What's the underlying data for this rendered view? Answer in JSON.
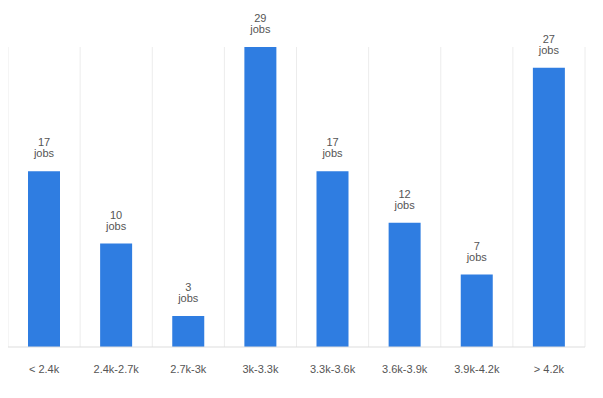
{
  "chart_data": {
    "type": "bar",
    "categories": [
      "< 2.4k",
      "2.4k-2.7k",
      "2.7k-3k",
      "3k-3.3k",
      "3.3k-3.6k",
      "3.6k-3.9k",
      "3.9k-4.2k",
      "> 4.2k"
    ],
    "values": [
      17,
      10,
      3,
      29,
      17,
      12,
      7,
      27
    ],
    "value_labels": [
      "17 jobs",
      "10 jobs",
      "3 jobs",
      "29 jobs",
      "17 jobs",
      "12 jobs",
      "7 jobs",
      "27 jobs"
    ],
    "color": "#2f7de1",
    "data_labels": true,
    "tick_labels": "x",
    "grid": true
  }
}
